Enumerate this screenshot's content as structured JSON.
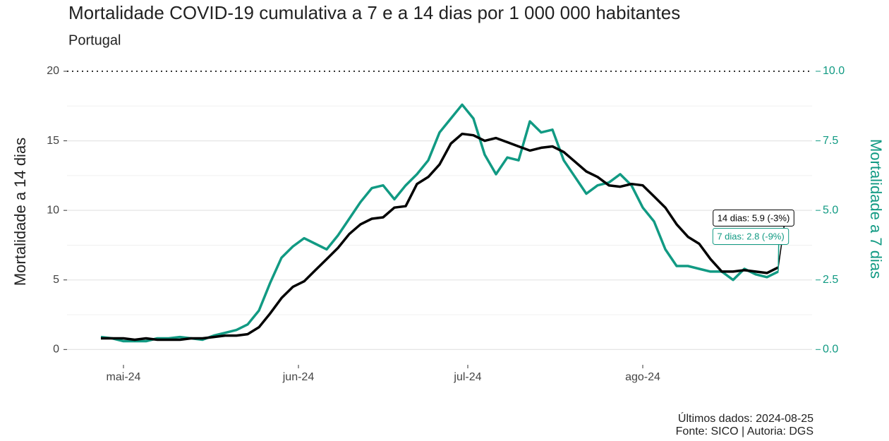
{
  "chart_data": {
    "type": "line",
    "title": "Mortalidade COVID-19 cumulativa a 7 e a 14 dias por 1 000 000 habitantes",
    "subtitle": "Portugal",
    "ylabel": "Mortalidade a 14 dias",
    "y2label": "Mortalidade a 7 dias",
    "caption": [
      "Últimos dados: 2024-08-25",
      "Fonte: SICO | Autoria: DGS"
    ],
    "x": [
      "2024-04-27",
      "2024-04-29",
      "2024-05-01",
      "2024-05-03",
      "2024-05-05",
      "2024-05-07",
      "2024-05-09",
      "2024-05-11",
      "2024-05-13",
      "2024-05-15",
      "2024-05-17",
      "2024-05-19",
      "2024-05-21",
      "2024-05-23",
      "2024-05-25",
      "2024-05-27",
      "2024-05-29",
      "2024-05-31",
      "2024-06-02",
      "2024-06-04",
      "2024-06-06",
      "2024-06-08",
      "2024-06-10",
      "2024-06-12",
      "2024-06-14",
      "2024-06-16",
      "2024-06-18",
      "2024-06-20",
      "2024-06-22",
      "2024-06-24",
      "2024-06-26",
      "2024-06-28",
      "2024-06-30",
      "2024-07-02",
      "2024-07-04",
      "2024-07-06",
      "2024-07-08",
      "2024-07-10",
      "2024-07-12",
      "2024-07-14",
      "2024-07-16",
      "2024-07-18",
      "2024-07-20",
      "2024-07-22",
      "2024-07-24",
      "2024-07-26",
      "2024-07-28",
      "2024-07-30",
      "2024-08-01",
      "2024-08-03",
      "2024-08-05",
      "2024-08-07",
      "2024-08-09",
      "2024-08-11",
      "2024-08-13",
      "2024-08-15",
      "2024-08-17",
      "2024-08-19",
      "2024-08-21",
      "2024-08-23",
      "2024-08-25"
    ],
    "series": [
      {
        "name": "14 dias",
        "color": "#000000",
        "axis": "y",
        "values": [
          0.8,
          0.8,
          0.8,
          0.7,
          0.8,
          0.7,
          0.7,
          0.7,
          0.8,
          0.8,
          0.9,
          1.0,
          1.0,
          1.1,
          1.6,
          2.6,
          3.7,
          4.5,
          4.9,
          5.7,
          6.5,
          7.3,
          8.3,
          9.0,
          9.4,
          9.5,
          10.2,
          10.3,
          11.9,
          12.4,
          13.3,
          14.8,
          15.5,
          15.4,
          15.0,
          15.2,
          14.9,
          14.6,
          14.3,
          14.5,
          14.6,
          14.2,
          13.5,
          12.8,
          12.4,
          11.8,
          11.7,
          11.9,
          11.8,
          11.0,
          10.2,
          9.0,
          8.1,
          7.6,
          6.5,
          5.6,
          5.6,
          5.7,
          5.6,
          5.5,
          5.9
        ]
      },
      {
        "name": "7 dias",
        "color": "#119a83",
        "axis": "y2",
        "values": [
          0.45,
          0.4,
          0.3,
          0.3,
          0.3,
          0.4,
          0.4,
          0.45,
          0.4,
          0.35,
          0.5,
          0.6,
          0.7,
          0.9,
          1.4,
          2.4,
          3.3,
          3.7,
          4.0,
          3.8,
          3.6,
          4.1,
          4.7,
          5.3,
          5.8,
          5.9,
          5.4,
          5.9,
          6.3,
          6.8,
          7.8,
          8.3,
          8.8,
          8.3,
          7.0,
          6.3,
          6.9,
          6.8,
          8.2,
          7.8,
          7.9,
          6.8,
          6.2,
          5.6,
          5.9,
          6.0,
          6.3,
          5.9,
          5.1,
          4.6,
          3.6,
          3.0,
          3.0,
          2.9,
          2.8,
          2.8,
          2.5,
          2.9,
          2.7,
          2.6,
          2.8
        ]
      }
    ],
    "annotations": [
      "14 dias: 5.9 (-3%)",
      "7 dias: 2.8 (-9%)"
    ],
    "xlim": [
      "2024-04-21",
      "2024-08-31"
    ],
    "xticks": [
      {
        "value": "2024-05-01",
        "label": "mai-24"
      },
      {
        "value": "2024-06-01",
        "label": "jun-24"
      },
      {
        "value": "2024-07-01",
        "label": "jul-24"
      },
      {
        "value": "2024-08-01",
        "label": "ago-24"
      }
    ],
    "ylim": [
      -1.1,
      20
    ],
    "yticks": [
      0,
      5,
      10,
      15,
      20
    ],
    "y2lim": [
      -0.55,
      10
    ],
    "y2ticks": [
      {
        "value": 0,
        "label": "0.0"
      },
      2.5,
      {
        "value": 5,
        "label": "5.0"
      },
      7.5,
      {
        "value": 10,
        "label": "10.0"
      }
    ],
    "grid": true
  }
}
